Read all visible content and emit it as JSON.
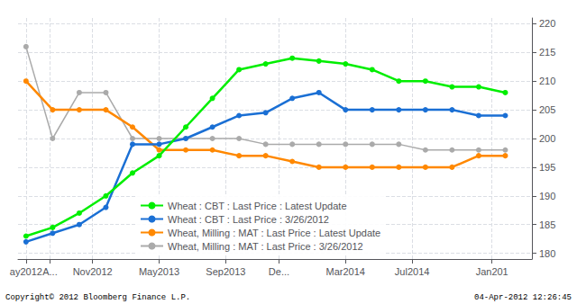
{
  "chart_data": {
    "type": "line",
    "annotations": [
      "Copyright© 2012 Bloomberg Finance L.P.",
      "04-Apr-2012 12:26:45"
    ],
    "x": [
      0,
      1,
      2,
      3,
      4,
      5,
      6,
      7,
      8,
      9,
      10,
      11,
      12,
      13,
      14,
      15,
      16,
      17,
      18
    ],
    "series": [
      {
        "name": "Wheat : CBT : Last Price : Latest Update",
        "color": "#00ee00",
        "marker": "circle",
        "values": [
          183,
          184.5,
          187,
          190,
          194,
          197,
          202,
          207,
          212,
          213,
          214,
          213.5,
          213,
          212,
          210,
          210,
          209,
          209,
          208
        ]
      },
      {
        "name": "Wheat : CBT : Last Price : 3/26/2012",
        "color": "#1a6fd4",
        "marker": "circle",
        "values": [
          182,
          183.5,
          185,
          188,
          199,
          199,
          200,
          202,
          204,
          204.5,
          207,
          208,
          205,
          205,
          205,
          205,
          205,
          204,
          204
        ]
      },
      {
        "name": "Wheat, Milling : MAT : Last Price : Latest Update",
        "color": "#ff8800",
        "marker": "circle",
        "values": [
          210,
          205,
          205,
          205,
          202,
          198,
          198,
          198,
          197,
          197,
          196,
          195,
          195,
          195,
          195,
          195,
          195,
          197,
          197
        ]
      },
      {
        "name": "Wheat, Milling : MAT : Last Price : 3/26/2012",
        "color": "#aaaaaa",
        "marker": "circle",
        "values": [
          216,
          200,
          208,
          208,
          200,
          200,
          200,
          200,
          200,
          199,
          199,
          199,
          199,
          199,
          199,
          198,
          198,
          198,
          198
        ]
      }
    ],
    "xlim": [
      -0.3,
      19.0
    ],
    "xticks": [
      {
        "value": 0,
        "label": "ay2012"
      },
      {
        "value": 0.9,
        "label": "A..."
      },
      {
        "value": 2.5,
        "label": "Nov2012"
      },
      {
        "value": 5.0,
        "label": "May2013"
      },
      {
        "value": 7.5,
        "label": "Sep2013"
      },
      {
        "value": 9.5,
        "label": "De..."
      },
      {
        "value": 12.0,
        "label": "Mar2014"
      },
      {
        "value": 14.5,
        "label": "Jul2014"
      },
      {
        "value": 17.5,
        "label": "Jan201"
      }
    ],
    "ylim": [
      179,
      221
    ],
    "yticks": [
      180,
      185,
      190,
      195,
      200,
      205,
      210,
      215,
      220
    ],
    "grid": true,
    "legend": "lower left"
  }
}
